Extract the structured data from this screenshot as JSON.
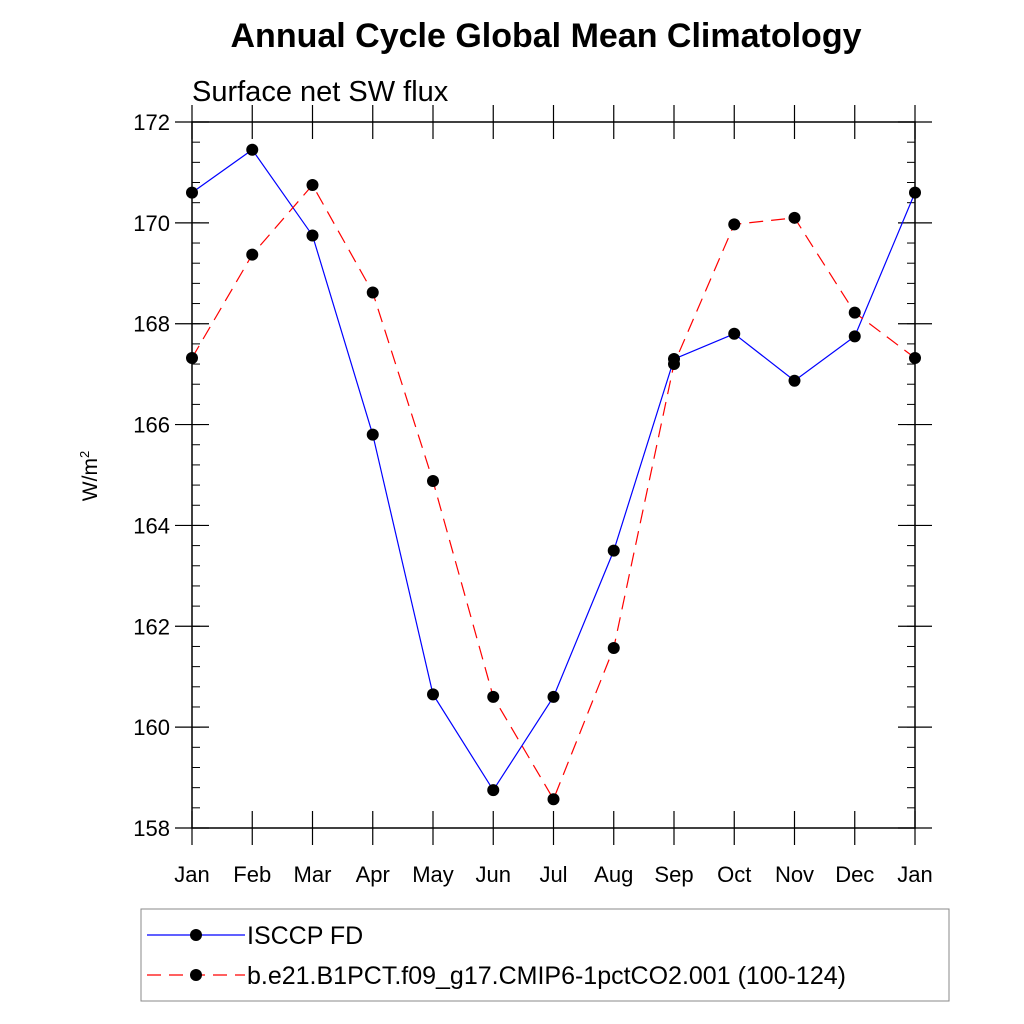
{
  "chart_data": {
    "type": "line",
    "title": "Annual Cycle Global Mean Climatology",
    "subtitle": "Surface net SW flux",
    "xlabel": "",
    "ylabel_base": "W/m",
    "ylabel_sup": "2",
    "categories": [
      "Jan",
      "Feb",
      "Mar",
      "Apr",
      "May",
      "Jun",
      "Jul",
      "Aug",
      "Sep",
      "Oct",
      "Nov",
      "Dec",
      "Jan"
    ],
    "ylim": [
      158,
      172
    ],
    "yticks": [
      158,
      160,
      162,
      164,
      166,
      168,
      170,
      172
    ],
    "ytick_labels": [
      "158",
      "160",
      "162",
      "164",
      "166",
      "168",
      "170",
      "172"
    ],
    "grid": false,
    "legend_position": "bottom",
    "series": [
      {
        "name": "ISCCP FD",
        "color": "#0000ff",
        "dash": "solid",
        "marker": "filled-circle",
        "values": [
          170.6,
          171.45,
          169.75,
          165.8,
          160.65,
          158.75,
          160.6,
          163.5,
          167.3,
          167.8,
          166.87,
          167.75,
          170.6
        ]
      },
      {
        "name": "b.e21.B1PCT.f09_g17.CMIP6-1pctCO2.001 (100-124)",
        "color": "#ff0000",
        "dash": "dashed",
        "marker": "filled-circle",
        "values": [
          167.32,
          169.37,
          170.75,
          168.62,
          164.88,
          160.6,
          158.57,
          161.57,
          167.2,
          169.97,
          170.1,
          168.22,
          167.32
        ]
      }
    ]
  }
}
